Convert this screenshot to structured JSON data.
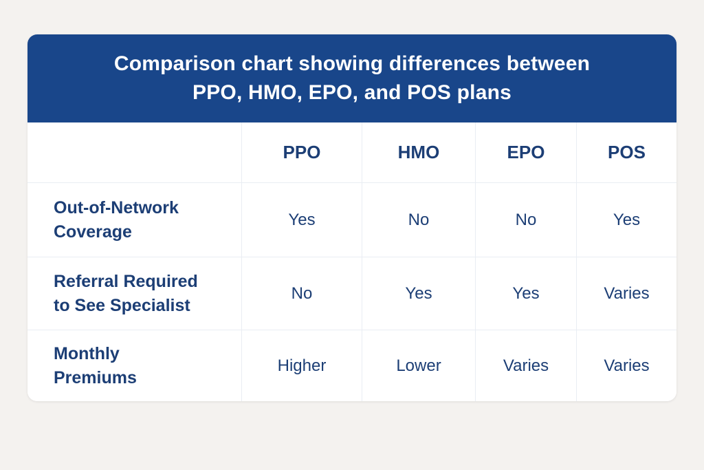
{
  "header": {
    "title": "Comparison chart showing differences between\nPPO, HMO, EPO, and POS plans"
  },
  "table": {
    "column_headers": [
      "PPO",
      "HMO",
      "EPO",
      "POS"
    ],
    "rows": [
      {
        "label": "Out-of-Network\nCoverage",
        "values": [
          "Yes",
          "No",
          "No",
          "Yes"
        ]
      },
      {
        "label": "Referral Required\nto See Specialist",
        "values": [
          "No",
          "Yes",
          "Yes",
          "Varies"
        ]
      },
      {
        "label": "Monthly\nPremiums",
        "values": [
          "Higher",
          "Lower",
          "Varies",
          "Varies"
        ]
      }
    ]
  },
  "chart_data": {
    "type": "table",
    "title": "Comparison chart showing differences between PPO, HMO, EPO, and POS plans",
    "columns": [
      "",
      "PPO",
      "HMO",
      "EPO",
      "POS"
    ],
    "rows": [
      [
        "Out-of-Network Coverage",
        "Yes",
        "No",
        "No",
        "Yes"
      ],
      [
        "Referral Required to See Specialist",
        "No",
        "Yes",
        "Yes",
        "Varies"
      ],
      [
        "Monthly Premiums",
        "Higher",
        "Lower",
        "Varies",
        "Varies"
      ]
    ]
  },
  "colors": {
    "header_bg": "#19468a",
    "header_text": "#ffffff",
    "cell_text": "#1c3e75",
    "grid_line": "#e9edf3",
    "page_bg": "#f4f2ef",
    "card_bg": "#ffffff"
  }
}
